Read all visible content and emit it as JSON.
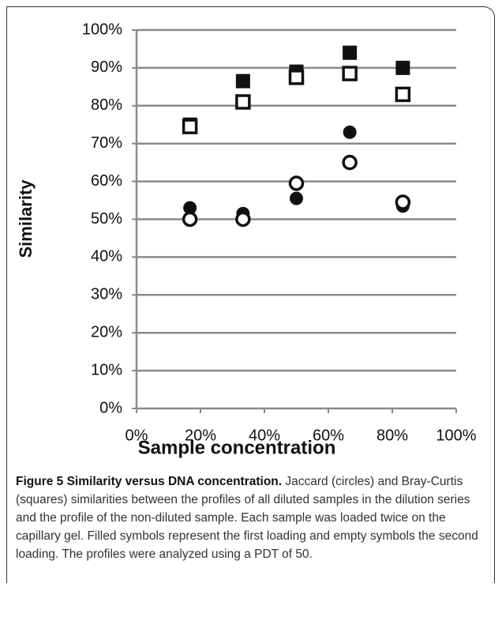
{
  "chart_data": {
    "type": "scatter",
    "xlabel": "Sample concentration",
    "ylabel": "Similarity",
    "xlim": [
      0,
      100
    ],
    "ylim": [
      0,
      100
    ],
    "xticks": [
      {
        "value": 0,
        "label": "0%"
      },
      {
        "value": 20,
        "label": "20%"
      },
      {
        "value": 40,
        "label": "40%"
      },
      {
        "value": 60,
        "label": "60%"
      },
      {
        "value": 80,
        "label": "80%"
      },
      {
        "value": 100,
        "label": "100%"
      }
    ],
    "yticks": [
      {
        "value": 0,
        "label": "0%"
      },
      {
        "value": 10,
        "label": "10%"
      },
      {
        "value": 20,
        "label": "20%"
      },
      {
        "value": 30,
        "label": "30%"
      },
      {
        "value": 40,
        "label": "40%"
      },
      {
        "value": 50,
        "label": "50%"
      },
      {
        "value": 60,
        "label": "60%"
      },
      {
        "value": 70,
        "label": "70%"
      },
      {
        "value": 80,
        "label": "80%"
      },
      {
        "value": 90,
        "label": "90%"
      },
      {
        "value": 100,
        "label": "100%"
      }
    ],
    "grid": true,
    "x": [
      16.7,
      33.3,
      50,
      66.7,
      83.3
    ],
    "series": [
      {
        "marker": "square",
        "filled": true,
        "color": "#111111",
        "values": [
          75,
          86.5,
          89,
          94,
          90
        ]
      },
      {
        "marker": "square",
        "filled": false,
        "color": "#111111",
        "values": [
          74.5,
          81,
          87.5,
          88.5,
          83
        ]
      },
      {
        "marker": "circle",
        "filled": true,
        "color": "#111111",
        "values": [
          53,
          51.5,
          55.5,
          73,
          53.5
        ]
      },
      {
        "marker": "circle",
        "filled": false,
        "color": "#111111",
        "values": [
          50,
          50,
          59.5,
          65,
          54.5
        ]
      }
    ]
  },
  "caption": {
    "title": "Figure 5 Similarity versus DNA concentration.",
    "text": "Jaccard (circles) and Bray-Curtis (squares) similarities between the profiles of all diluted samples in the dilution series and the profile of the non-diluted sample. Each sample was loaded twice on the capillary gel. Filled symbols represent the first loading and empty symbols the second loading. The profiles were analyzed using a PDT of 50."
  }
}
